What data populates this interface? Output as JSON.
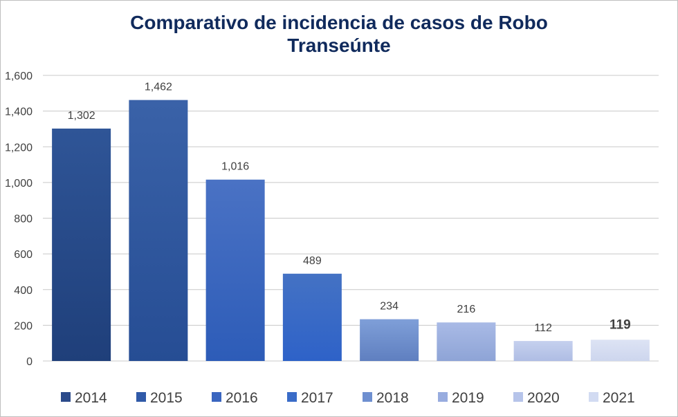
{
  "chart_data": {
    "type": "bar",
    "title_line1": "Comparativo de incidencia de casos de Robo",
    "title_line2": "Transeúnte",
    "categories": [
      "2014",
      "2015",
      "2016",
      "2017",
      "2018",
      "2019",
      "2020",
      "2021"
    ],
    "values": [
      1302,
      1462,
      1016,
      489,
      234,
      216,
      112,
      119
    ],
    "data_labels": [
      "1,302",
      "1,462",
      "1,016",
      "489",
      "234",
      "216",
      "112",
      "119"
    ],
    "bold_label_index": 7,
    "ylim": [
      0,
      1600
    ],
    "yticks": [
      0,
      200,
      400,
      600,
      800,
      1000,
      1200,
      1400,
      1600
    ],
    "ytick_labels": [
      "0",
      "200",
      "400",
      "600",
      "800",
      "1,000",
      "1,200",
      "1,400",
      "1,600"
    ],
    "xlabel": "",
    "ylabel": "",
    "grid": true,
    "legend": "bottom",
    "colors": [
      [
        "#2f5597",
        "#1f3f7a"
      ],
      [
        "#3a62a8",
        "#264d94"
      ],
      [
        "#4a72c4",
        "#2d5cb8"
      ],
      [
        "#4472c4",
        "#2e62c8"
      ],
      [
        "#7f9fd8",
        "#5f7fc0"
      ],
      [
        "#a9bae6",
        "#8ea4d6"
      ],
      [
        "#c5d0ee",
        "#afbde4"
      ],
      [
        "#dde3f4",
        "#cdd6ee"
      ]
    ],
    "legend_colors": [
      "#2b4a8a",
      "#305aa8",
      "#3a66c0",
      "#3a6cc8",
      "#6e8fd0",
      "#98acdf",
      "#b6c4ea",
      "#d2dbf2"
    ]
  }
}
